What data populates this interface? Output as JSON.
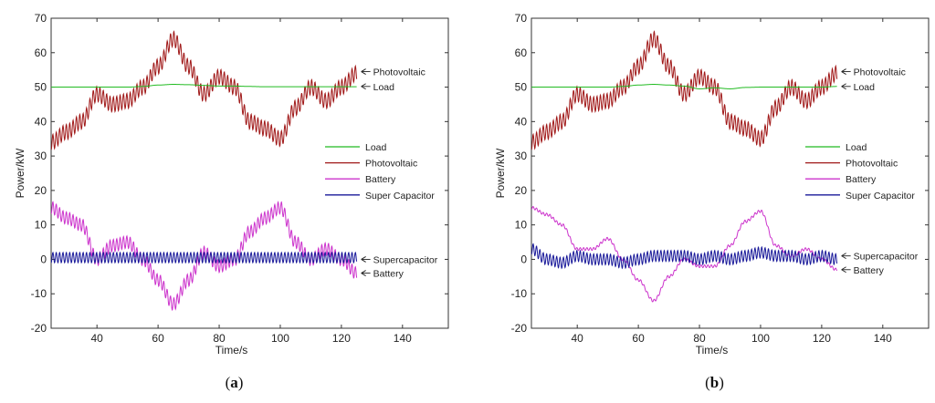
{
  "chart_data": [
    {
      "type": "line",
      "panel_label": {
        "open": "(",
        "letter": "a",
        "close": ")"
      },
      "xlabel": "Time/s",
      "ylabel": "Power/kW",
      "xlim": [
        25,
        155
      ],
      "ylim": [
        -20,
        70
      ],
      "xticks": [
        40,
        60,
        80,
        100,
        120,
        140
      ],
      "yticks": [
        -20,
        -10,
        0,
        10,
        20,
        30,
        40,
        50,
        60,
        70
      ],
      "grid": false,
      "legend_position": "right",
      "x": [
        25,
        30,
        35,
        40,
        45,
        50,
        55,
        60,
        65,
        70,
        75,
        80,
        85,
        90,
        95,
        100,
        105,
        110,
        115,
        120,
        125
      ],
      "series": [
        {
          "name": "Load",
          "color": "#22bb22",
          "osc_amp": 0,
          "values": [
            50,
            50,
            50,
            50,
            50,
            50,
            50.2,
            50.6,
            50.8,
            50.7,
            50.5,
            50.3,
            50.3,
            50.2,
            50.1,
            50.1,
            50.1,
            50.1,
            50.1,
            50.1,
            50.1
          ]
        },
        {
          "name": "Photovoltaic",
          "color": "#a01818",
          "osc_amp": 2.2,
          "values": [
            34,
            37,
            40,
            48,
            45,
            46,
            50,
            56,
            64,
            56,
            48,
            53,
            50,
            40,
            38,
            35,
            44,
            50,
            46,
            50,
            54
          ]
        },
        {
          "name": "Battery",
          "color": "#cc33cc",
          "osc_amp": 1.8,
          "values": [
            15,
            12,
            10,
            0,
            4,
            5,
            0,
            -6,
            -13,
            -6,
            2,
            -2,
            0,
            8,
            12,
            15,
            5,
            0,
            3,
            0,
            -4
          ]
        },
        {
          "name": "Super Capacitor",
          "color": "#1a1a9a",
          "osc_amp": 1.5,
          "values": [
            0.5,
            0.5,
            0.5,
            0.5,
            0.5,
            0.5,
            0.5,
            0.5,
            0.5,
            0.5,
            0.5,
            0.5,
            0.5,
            0.5,
            0.5,
            0.5,
            0.5,
            0.5,
            0.5,
            0.5,
            0.5
          ]
        }
      ],
      "annotations": [
        {
          "text": "Photovoltaic",
          "y": 54.5
        },
        {
          "text": "Load",
          "y": 50.2
        },
        {
          "text": "Supercapacitor",
          "y": 0
        },
        {
          "text": "Battery",
          "y": -4
        }
      ]
    },
    {
      "type": "line",
      "panel_label": {
        "open": "(",
        "letter": "b",
        "close": ")"
      },
      "xlabel": "Time/s",
      "ylabel": "Power/kW",
      "xlim": [
        25,
        155
      ],
      "ylim": [
        -20,
        70
      ],
      "xticks": [
        40,
        60,
        80,
        100,
        120,
        140
      ],
      "yticks": [
        -20,
        -10,
        0,
        10,
        20,
        30,
        40,
        50,
        60,
        70
      ],
      "grid": false,
      "legend_position": "right",
      "x": [
        25,
        30,
        35,
        40,
        45,
        50,
        55,
        60,
        65,
        70,
        75,
        80,
        85,
        90,
        95,
        100,
        105,
        110,
        115,
        120,
        125
      ],
      "series": [
        {
          "name": "Load",
          "color": "#22bb22",
          "osc_amp": 0,
          "values": [
            50,
            50,
            50,
            50,
            50,
            50,
            50.2,
            50.6,
            50.8,
            50.6,
            50.3,
            49.5,
            49.8,
            49.5,
            49.9,
            50,
            50,
            50,
            50,
            50,
            50.2
          ]
        },
        {
          "name": "Photovoltaic",
          "color": "#a01818",
          "osc_amp": 2.2,
          "values": [
            34,
            37,
            40,
            48,
            45,
            46,
            50,
            56,
            64,
            56,
            48,
            53,
            50,
            40,
            38,
            35,
            44,
            50,
            46,
            50,
            54
          ]
        },
        {
          "name": "Battery",
          "color": "#cc33cc",
          "osc_amp": 0.4,
          "values": [
            15,
            13,
            10,
            3,
            3,
            6,
            0,
            -6,
            -12,
            -5,
            0,
            -2,
            -2,
            4,
            11,
            14,
            4,
            1,
            3,
            0,
            -3
          ]
        },
        {
          "name": "Super Capacitor",
          "color": "#1a1a9a",
          "osc_amp": 1.6,
          "values": [
            3,
            0,
            -1,
            1,
            0,
            0,
            -1,
            0,
            1,
            1,
            1,
            0,
            1,
            0,
            1,
            2,
            1,
            1,
            0,
            1,
            0
          ]
        }
      ],
      "annotations": [
        {
          "text": "Photovoltaic",
          "y": 54.5
        },
        {
          "text": "Load",
          "y": 50.2
        },
        {
          "text": "Supercapacitor",
          "y": 1
        },
        {
          "text": "Battery",
          "y": -3
        }
      ]
    }
  ]
}
